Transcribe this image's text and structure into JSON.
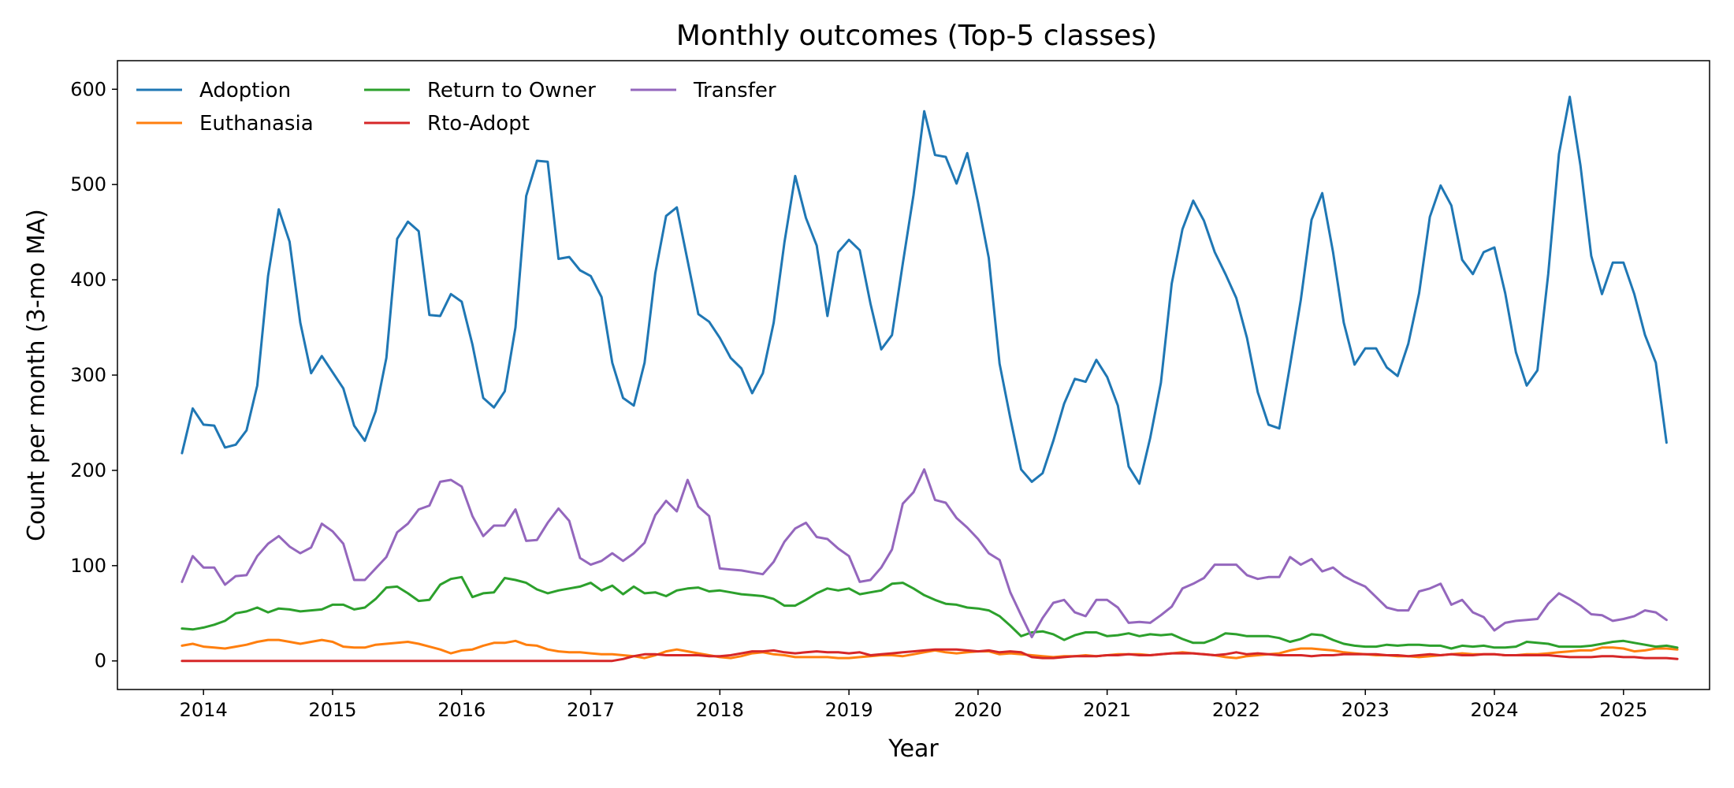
{
  "chart_data": {
    "type": "line",
    "title": "Monthly outcomes (Top-5 classes)",
    "xlabel": "Year",
    "ylabel": "Count per month (3-mo MA)",
    "x_start": "2013-11",
    "x_end": "2025-05",
    "xlim": [
      "2013-05",
      "2025-09"
    ],
    "ylim": [
      -30,
      630
    ],
    "xticks": [
      "2014",
      "2015",
      "2016",
      "2017",
      "2018",
      "2019",
      "2020",
      "2021",
      "2022",
      "2023",
      "2024",
      "2025"
    ],
    "yticks": [
      0,
      100,
      200,
      300,
      400,
      500,
      600
    ],
    "grid": false,
    "legend_position": "top-left",
    "series": [
      {
        "name": "Adoption",
        "color": "#1f77b4",
        "values": [
          218,
          265,
          248,
          247,
          224,
          227,
          242,
          289,
          404,
          474,
          440,
          355,
          302,
          320,
          303,
          286,
          247,
          231,
          262,
          318,
          443,
          461,
          451,
          363,
          362,
          385,
          377,
          332,
          276,
          266,
          283,
          350,
          488,
          525,
          524,
          422,
          424,
          410,
          404,
          382,
          313,
          276,
          268,
          313,
          407,
          467,
          476,
          420,
          364,
          356,
          339,
          318,
          307,
          281,
          302,
          355,
          439,
          509,
          465,
          436,
          362,
          429,
          442,
          431,
          375,
          327,
          342,
          417,
          489,
          577,
          531,
          529,
          501,
          533,
          481,
          423,
          312,
          255,
          201,
          188,
          197,
          231,
          270,
          296,
          293,
          316,
          298,
          268,
          204,
          186,
          234,
          292,
          396,
          453,
          483,
          462,
          429,
          406,
          381,
          339,
          282,
          248,
          244,
          310,
          379,
          463,
          491,
          429,
          355,
          311,
          328,
          328,
          308,
          299,
          333,
          386,
          466,
          499,
          478,
          421,
          406,
          429,
          434,
          386,
          324,
          289,
          305,
          406,
          532,
          592,
          520,
          425,
          385,
          418,
          418,
          385,
          342,
          313,
          229
        ]
      },
      {
        "name": "Euthanasia",
        "color": "#ff7f0e",
        "values": [
          16,
          18,
          15,
          14,
          13,
          15,
          17,
          20,
          22,
          22,
          20,
          18,
          20,
          22,
          20,
          15,
          14,
          14,
          17,
          18,
          19,
          20,
          18,
          15,
          12,
          8,
          11,
          12,
          16,
          19,
          19,
          21,
          17,
          16,
          12,
          10,
          9,
          9,
          8,
          7,
          7,
          6,
          5,
          3,
          6,
          10,
          12,
          10,
          8,
          6,
          4,
          3,
          5,
          8,
          9,
          7,
          6,
          4,
          4,
          4,
          4,
          3,
          3,
          4,
          5,
          6,
          6,
          5,
          7,
          9,
          11,
          9,
          8,
          9,
          10,
          10,
          7,
          8,
          7,
          6,
          5,
          4,
          5,
          5,
          6,
          5,
          6,
          7,
          7,
          7,
          6,
          7,
          8,
          9,
          8,
          7,
          6,
          4,
          3,
          5,
          6,
          7,
          8,
          11,
          13,
          13,
          12,
          11,
          9,
          8,
          7,
          6,
          6,
          5,
          5,
          4,
          5,
          6,
          7,
          8,
          7,
          7,
          7,
          6,
          6,
          7,
          7,
          8,
          9,
          10,
          11,
          11,
          14,
          14,
          13,
          10,
          11,
          13,
          13,
          12
        ]
      },
      {
        "name": "Return to Owner",
        "color": "#2ca02c",
        "values": [
          34,
          33,
          35,
          38,
          42,
          50,
          52,
          56,
          51,
          55,
          54,
          52,
          53,
          54,
          59,
          59,
          54,
          56,
          65,
          77,
          78,
          71,
          63,
          64,
          80,
          86,
          88,
          67,
          71,
          72,
          87,
          85,
          82,
          75,
          71,
          74,
          76,
          78,
          82,
          74,
          79,
          70,
          78,
          71,
          72,
          68,
          74,
          76,
          77,
          73,
          74,
          72,
          70,
          69,
          68,
          65,
          58,
          58,
          64,
          71,
          76,
          74,
          76,
          70,
          72,
          74,
          81,
          82,
          76,
          69,
          64,
          60,
          59,
          56,
          55,
          53,
          47,
          37,
          26,
          30,
          31,
          28,
          22,
          27,
          30,
          30,
          26,
          27,
          29,
          26,
          28,
          27,
          28,
          23,
          19,
          19,
          23,
          29,
          28,
          26,
          26,
          26,
          24,
          20,
          23,
          28,
          27,
          22,
          18,
          16,
          15,
          15,
          17,
          16,
          17,
          17,
          16,
          16,
          13,
          16,
          15,
          16,
          14,
          14,
          15,
          20,
          19,
          18,
          15,
          15,
          15,
          16,
          18,
          20,
          21,
          19,
          17,
          15,
          16,
          14
        ]
      },
      {
        "name": "Rto-Adopt",
        "color": "#d62728",
        "values": [
          0,
          0,
          0,
          0,
          0,
          0,
          0,
          0,
          0,
          0,
          0,
          0,
          0,
          0,
          0,
          0,
          0,
          0,
          0,
          0,
          0,
          0,
          0,
          0,
          0,
          0,
          0,
          0,
          0,
          0,
          0,
          0,
          0,
          0,
          0,
          0,
          0,
          0,
          0,
          0,
          0,
          2,
          5,
          7,
          7,
          6,
          6,
          6,
          6,
          5,
          5,
          6,
          8,
          10,
          10,
          11,
          9,
          8,
          9,
          10,
          9,
          9,
          8,
          9,
          6,
          7,
          8,
          9,
          10,
          11,
          12,
          12,
          12,
          11,
          10,
          11,
          9,
          10,
          9,
          4,
          3,
          3,
          4,
          5,
          5,
          5,
          6,
          6,
          7,
          6,
          6,
          7,
          8,
          8,
          8,
          7,
          6,
          7,
          9,
          7,
          8,
          7,
          6,
          6,
          6,
          5,
          6,
          6,
          7,
          7,
          7,
          7,
          6,
          6,
          5,
          6,
          7,
          6,
          7,
          6,
          6,
          7,
          7,
          6,
          6,
          6,
          6,
          6,
          5,
          4,
          4,
          4,
          5,
          5,
          4,
          4,
          3,
          3,
          3,
          2
        ]
      },
      {
        "name": "Transfer",
        "color": "#9467bd",
        "values": [
          83,
          110,
          98,
          98,
          80,
          89,
          90,
          110,
          123,
          131,
          120,
          113,
          119,
          144,
          136,
          123,
          85,
          85,
          97,
          109,
          135,
          144,
          159,
          163,
          188,
          190,
          183,
          152,
          131,
          142,
          142,
          159,
          126,
          127,
          145,
          160,
          147,
          108,
          101,
          105,
          113,
          105,
          113,
          124,
          153,
          168,
          157,
          190,
          162,
          152,
          97,
          96,
          95,
          93,
          91,
          104,
          125,
          139,
          145,
          130,
          128,
          118,
          110,
          83,
          85,
          98,
          117,
          165,
          177,
          201,
          169,
          166,
          150,
          140,
          128,
          113,
          106,
          72,
          48,
          25,
          45,
          61,
          64,
          51,
          47,
          64,
          64,
          56,
          40,
          41,
          40,
          48,
          57,
          76,
          81,
          87,
          101,
          101,
          101,
          90,
          86,
          88,
          88,
          109,
          101,
          107,
          94,
          98,
          89,
          83,
          78,
          67,
          56,
          53,
          53,
          73,
          76,
          81,
          59,
          64,
          51,
          46,
          32,
          40,
          42,
          43,
          44,
          60,
          71,
          65,
          58,
          49,
          48,
          42,
          44,
          47,
          53,
          51,
          43
        ]
      }
    ]
  }
}
